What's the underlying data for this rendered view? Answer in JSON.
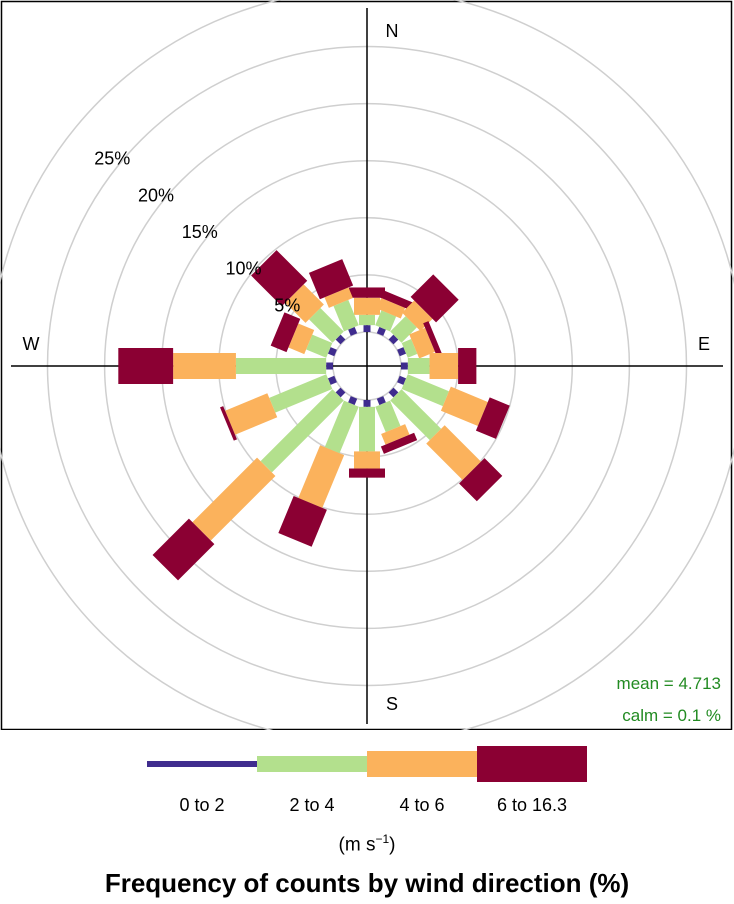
{
  "chart_data": {
    "type": "wind-rose",
    "title": "Frequency of counts by wind direction (%)",
    "directions": [
      "N",
      "NNE",
      "NE",
      "ENE",
      "E",
      "ESE",
      "SE",
      "SSE",
      "S",
      "SSW",
      "SW",
      "WSW",
      "W",
      "WNW",
      "NW",
      "NNW"
    ],
    "direction_degrees": [
      0,
      22.5,
      45,
      67.5,
      90,
      112.5,
      135,
      157.5,
      180,
      202.5,
      225,
      247.5,
      270,
      292.5,
      315,
      337.5
    ],
    "compass_labels": {
      "N": "N",
      "E": "E",
      "S": "S",
      "W": "W"
    },
    "radial_axis": {
      "ticks": [
        5,
        10,
        15,
        20,
        25
      ],
      "tick_labels": [
        "5%",
        "10%",
        "15%",
        "20%",
        "25%"
      ],
      "max": 31
    },
    "speed_bins": [
      {
        "name": "0 to 2",
        "color": "#3F2C8E"
      },
      {
        "name": "2 to 4",
        "color": "#B3E08D"
      },
      {
        "name": "4 to 6",
        "color": "#FBB25C"
      },
      {
        "name": "6 to 16.3",
        "color": "#8B0033"
      }
    ],
    "cumulative_percent": [
      [
        0.6,
        1.5,
        3.0,
        3.9
      ],
      [
        0.6,
        2.0,
        3.0,
        3.7
      ],
      [
        0.6,
        2.5,
        4.0,
        6.8
      ],
      [
        0.6,
        1.5,
        3.0,
        3.5
      ],
      [
        0.6,
        2.5,
        5.0,
        6.6
      ],
      [
        0.6,
        4.5,
        8.0,
        9.9
      ],
      [
        0.6,
        5.5,
        10.0,
        12.2
      ],
      [
        0.6,
        3.0,
        4.0,
        4.7
      ],
      [
        0.6,
        4.5,
        6.0,
        6.8
      ],
      [
        0.6,
        5.0,
        10.0,
        13.5
      ],
      [
        0.6,
        9.5,
        17.5,
        22.0
      ],
      [
        0.6,
        6.0,
        10.0,
        10.3
      ],
      [
        0.6,
        8.5,
        14.0,
        18.8
      ],
      [
        0.6,
        2.5,
        4.0,
        5.5
      ],
      [
        0.6,
        3.5,
        6.0,
        9.8
      ],
      [
        0.6,
        3.0,
        4.0,
        6.5
      ]
    ],
    "legend": {
      "position": "bottom",
      "units_label_base": "(m s",
      "units_label_sup": "−1",
      "units_label_end": ")"
    },
    "statistics": {
      "mean_label": "mean  =  4.713",
      "calm_label": "calm =  0.1 %"
    },
    "grid": true
  }
}
